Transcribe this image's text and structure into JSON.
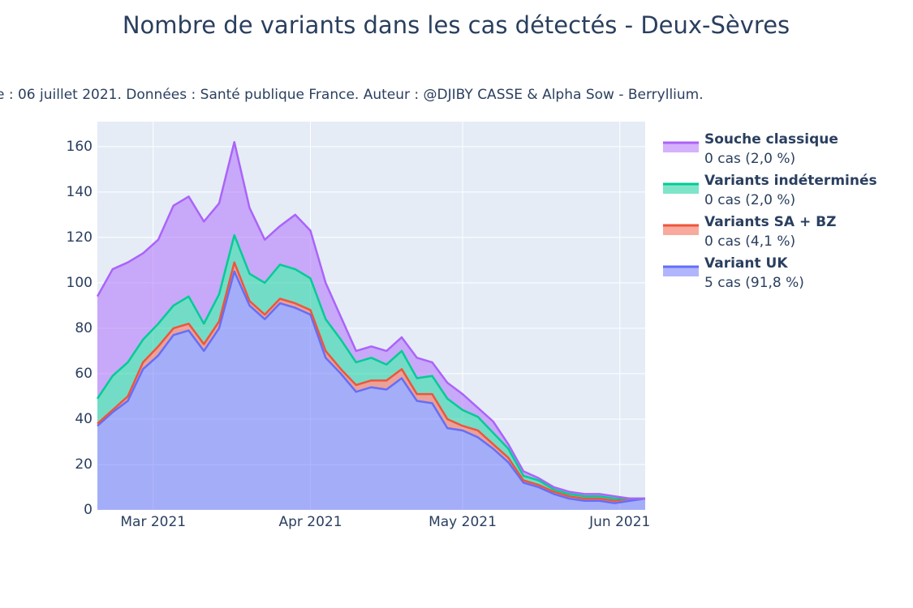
{
  "chart_data": {
    "type": "stacked_area",
    "title": "Nombre de variants dans les cas détectés - Deux-Sèvres",
    "subtitle": "e : 06 juillet 2021. Données : Santé publique France. Auteur : @DJIBY CASSE & Alpha Sow - Berryllium.",
    "x": [
      "2021-02-18",
      "2021-02-21",
      "2021-02-24",
      "2021-02-27",
      "2021-03-02",
      "2021-03-05",
      "2021-03-08",
      "2021-03-11",
      "2021-03-14",
      "2021-03-17",
      "2021-03-20",
      "2021-03-23",
      "2021-03-26",
      "2021-03-29",
      "2021-04-01",
      "2021-04-04",
      "2021-04-07",
      "2021-04-10",
      "2021-04-13",
      "2021-04-16",
      "2021-04-19",
      "2021-04-22",
      "2021-04-25",
      "2021-04-28",
      "2021-05-01",
      "2021-05-04",
      "2021-05-07",
      "2021-05-10",
      "2021-05-13",
      "2021-05-16",
      "2021-05-19",
      "2021-05-22",
      "2021-05-25",
      "2021-05-28",
      "2021-05-31",
      "2021-06-03",
      "2021-06-06"
    ],
    "series": [
      {
        "name": "Variant UK",
        "legend_label": "5 cas (91,8 %)",
        "color": "#636efa",
        "values": [
          37,
          43,
          48,
          62,
          68,
          77,
          79,
          70,
          80,
          105,
          90,
          84,
          91,
          89,
          86,
          67,
          60,
          52,
          54,
          53,
          58,
          48,
          47,
          36,
          35,
          32,
          27,
          21,
          12,
          10,
          7,
          5,
          4,
          4,
          3,
          4,
          5
        ]
      },
      {
        "name": "Variants SA + BZ",
        "legend_label": "0 cas (4,1 %)",
        "color": "#ef553b",
        "values": [
          1,
          1,
          2,
          3,
          4,
          3,
          3,
          3,
          3,
          4,
          2,
          2,
          2,
          2,
          2,
          3,
          2,
          3,
          3,
          4,
          4,
          3,
          4,
          4,
          2,
          3,
          2,
          2,
          1,
          1,
          1,
          1,
          1,
          1,
          1,
          1,
          0
        ]
      },
      {
        "name": "Variants indéterminés",
        "legend_label": "0 cas (2,0 %)",
        "color": "#00cc96",
        "values": [
          11,
          15,
          15,
          10,
          10,
          10,
          12,
          9,
          12,
          12,
          12,
          14,
          15,
          15,
          14,
          14,
          13,
          10,
          10,
          7,
          8,
          7,
          8,
          9,
          7,
          6,
          5,
          4,
          2,
          2,
          1,
          1,
          1,
          1,
          1,
          0,
          0
        ]
      },
      {
        "name": "Souche classique",
        "legend_label": "0 cas (2,0 %)",
        "color": "#ab63fa",
        "values": [
          45,
          47,
          44,
          38,
          37,
          44,
          44,
          45,
          40,
          41,
          29,
          19,
          17,
          24,
          21,
          16,
          10,
          5,
          5,
          6,
          6,
          9,
          6,
          7,
          7,
          4,
          5,
          2,
          2,
          1,
          1,
          1,
          1,
          1,
          1,
          0,
          0
        ]
      }
    ],
    "xlim": [
      "2021-02-18",
      "2021-06-06"
    ],
    "xticks": [
      {
        "value": "2021-03-01",
        "label": "Mar 2021"
      },
      {
        "value": "2021-04-01",
        "label": "Apr 2021"
      },
      {
        "value": "2021-05-01",
        "label": "May 2021"
      },
      {
        "value": "2021-06-01",
        "label": "Jun 2021"
      }
    ],
    "ylim": [
      0,
      171
    ],
    "yticks": [
      0,
      20,
      40,
      60,
      80,
      100,
      120,
      140,
      160
    ],
    "grid": true
  }
}
